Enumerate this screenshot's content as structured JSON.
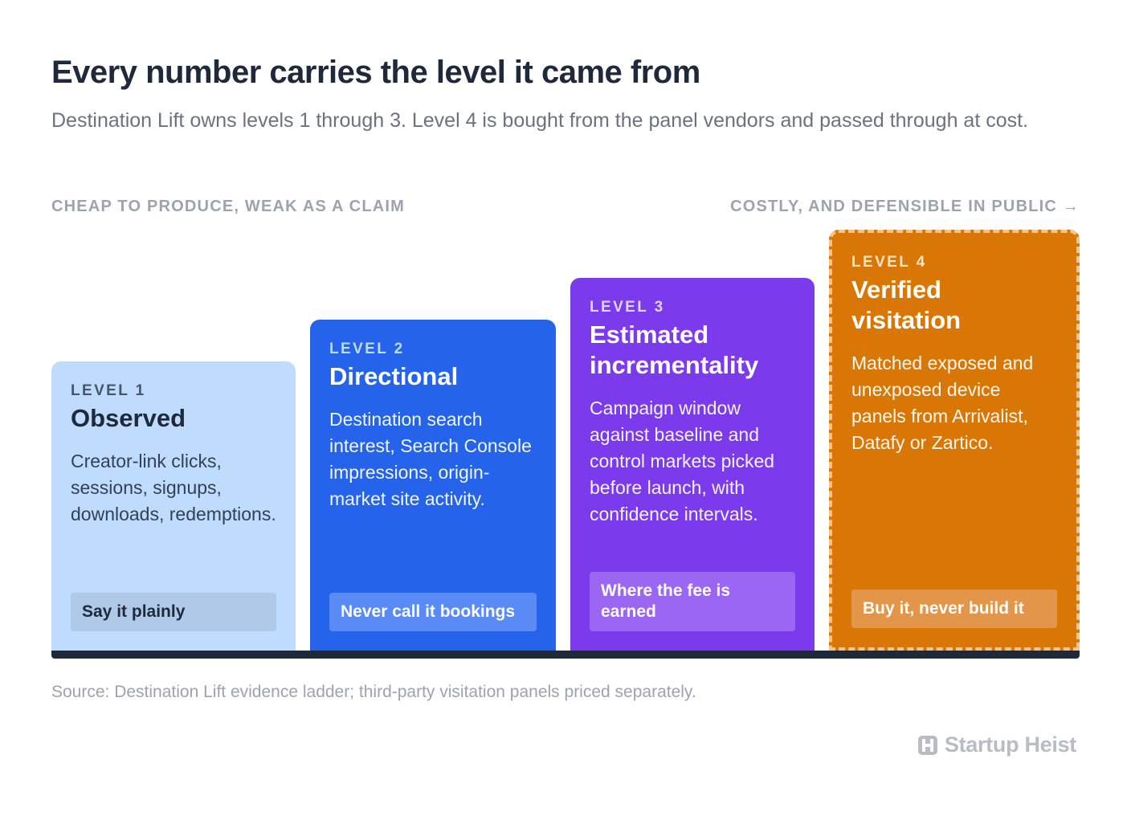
{
  "header": {
    "title": "Every number carries the level it came from",
    "subtitle": "Destination Lift owns levels 1 through 3. Level 4 is bought from the panel vendors and passed through at cost."
  },
  "axis": {
    "left_label": "CHEAP TO PRODUCE, WEAK AS A CLAIM",
    "right_label": "COSTLY, AND DEFENSIBLE IN PUBLIC →"
  },
  "levels": [
    {
      "level": "LEVEL 1",
      "name": "Observed",
      "description": "Creator-link clicks, sessions, signups, downloads, redemptions.",
      "tag": "Say it plainly",
      "color": "#bfdbfe"
    },
    {
      "level": "LEVEL 2",
      "name": "Directional",
      "description": "Destination search interest, Search Console impressions, origin-market site activity.",
      "tag": "Never call it bookings",
      "color": "#2563eb"
    },
    {
      "level": "LEVEL 3",
      "name": "Estimated incrementality",
      "description": "Campaign window against baseline and control markets picked before launch, with confidence intervals.",
      "tag": "Where the fee is earned",
      "color": "#7c3aed"
    },
    {
      "level": "LEVEL 4",
      "name": "Verified visitation",
      "description": "Matched exposed and unexposed device panels from Arrivalist, Datafy or Zartico.",
      "tag": "Buy it, never build it",
      "color": "#d97706"
    }
  ],
  "footer": {
    "source": "Source: Destination Lift evidence ladder; third-party visitation panels priced separately.",
    "brand": "Startup Heist",
    "brand_icon": "startup-heist-logo-icon"
  }
}
